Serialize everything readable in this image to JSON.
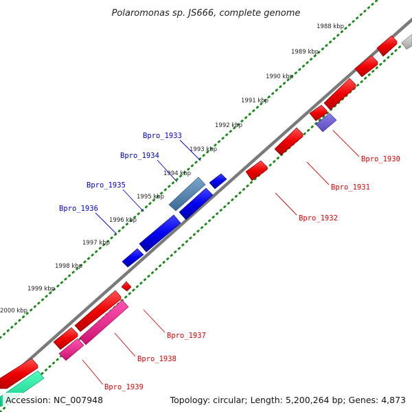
{
  "title": "Polaromonas sp. JS666, complete genome",
  "accession": "Accession: NC_007948",
  "summary": "Topology: circular; Length: 5,200,264 bp; Genes: 4,873",
  "ticks": [
    "1988 kbp",
    "1989 kbp",
    "1990 kbp",
    "1991 kbp",
    "1992 kbp",
    "1993 kbp",
    "1994 kbp",
    "1995 kbp",
    "1996 kbp",
    "1997 kbp",
    "1998 kbp",
    "1999 kbp",
    "2000 kbp"
  ],
  "gene_labels": {
    "top": [
      "Bpro_1933",
      "Bpro_1934",
      "Bpro_1935",
      "Bpro_1936"
    ],
    "bottom": [
      "Bpro_1930",
      "Bpro_1931",
      "Bpro_1932",
      "Bpro_1937",
      "Bpro_1938",
      "Bpro_1939"
    ]
  },
  "colors": {
    "backbone": "#808080",
    "forward_gene": "#0000ee",
    "forward_gene_alt": "#4a7ba7",
    "reverse_gene": "#ee0000",
    "reverse_gene_pink": "#ee1a8a",
    "reverse_gene_violet": "#6b5acd",
    "teal_gene": "#20e6a0",
    "grey_gene": "#c0c0c0",
    "tick_dots": "#1a8a1a",
    "label_top": "#0000cc",
    "label_bottom": "#dd0000"
  }
}
